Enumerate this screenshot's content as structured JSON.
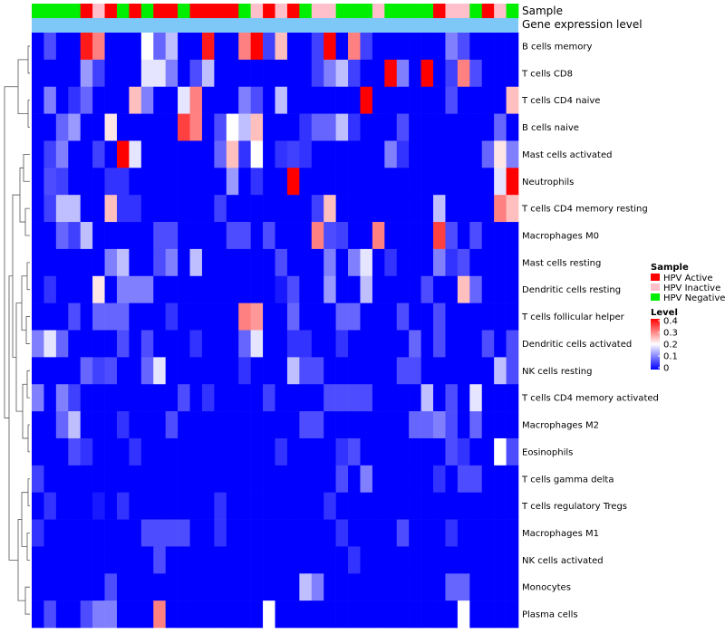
{
  "colors": {
    "low": "#0000ff",
    "mid": "#ffffff",
    "high": "#ff0000",
    "hpv_active": "#ff0000",
    "hpv_inactive": "#ffc0cb",
    "hpv_negative": "#00ee00",
    "expr_bar": "#7ec8f8"
  },
  "chart_data": {
    "type": "heatmap",
    "annotation_labels": [
      "Sample",
      "Gene expression level"
    ],
    "sample_groups": [
      "HPV Active",
      "HPV Inactive",
      "HPV Negative"
    ],
    "sample_annotation": [
      2,
      2,
      2,
      2,
      0,
      1,
      0,
      2,
      0,
      2,
      0,
      0,
      2,
      0,
      0,
      0,
      0,
      2,
      1,
      0,
      1,
      0,
      2,
      1,
      1,
      2,
      2,
      2,
      1,
      2,
      2,
      2,
      2,
      0,
      1,
      1,
      2,
      0,
      1,
      2
    ],
    "legend": {
      "sample_title": "Sample",
      "sample_entries": [
        "HPV Active",
        "HPV Inactive",
        "HPV Negative"
      ],
      "level_title": "Level",
      "level_ticks": [
        "0.4",
        "0.3",
        "0.2",
        "0.1",
        "0"
      ],
      "level_range": [
        0,
        0.4
      ]
    },
    "rows": [
      "B cells memory",
      "T cells CD8",
      "T cells CD4 naive",
      "B cells naive",
      "Mast cells activated",
      "Neutrophils",
      "T cells CD4 memory resting",
      "Macrophages M0",
      "Mast cells resting",
      "Dendritic cells resting",
      "T cells follicular helper",
      "Dendritic cells activated",
      "NK cells resting",
      "T cells CD4 memory activated",
      "Macrophages M2",
      "Eosinophils",
      "T cells gamma delta",
      "T cells regulatory  Tregs",
      "Macrophages M1",
      "NK cells activated",
      "Monocytes",
      "Plasma cells"
    ],
    "values": [
      [
        0.0,
        0.06,
        0.0,
        0.0,
        0.38,
        0.3,
        0.0,
        0.0,
        0.0,
        0.2,
        0.08,
        0.15,
        0.0,
        0.0,
        0.38,
        0.0,
        0.0,
        0.3,
        0.4,
        0.05,
        0.25,
        0.0,
        0.0,
        0.05,
        0.4,
        0.0,
        0.3,
        0.05,
        0.0,
        0.0,
        0.0,
        0.0,
        0.0,
        0.0,
        0.1,
        0.06,
        0.0,
        0.0,
        0.0,
        0.0
      ],
      [
        0.0,
        0.0,
        0.0,
        0.0,
        0.12,
        0.05,
        0.0,
        0.0,
        0.0,
        0.18,
        0.18,
        0.1,
        0.0,
        0.06,
        0.15,
        0.0,
        0.0,
        0.0,
        0.0,
        0.0,
        0.0,
        0.0,
        0.0,
        0.05,
        0.1,
        0.15,
        0.05,
        0.0,
        0.0,
        0.4,
        0.1,
        0.0,
        0.4,
        0.0,
        0.05,
        0.3,
        0.06,
        0.0,
        0.0,
        0.0
      ],
      [
        0.0,
        0.1,
        0.0,
        0.04,
        0.08,
        0.0,
        0.0,
        0.0,
        0.25,
        0.1,
        0.0,
        0.0,
        0.18,
        0.3,
        0.0,
        0.0,
        0.0,
        0.1,
        0.06,
        0.0,
        0.15,
        0.0,
        0.0,
        0.0,
        0.0,
        0.0,
        0.0,
        0.4,
        0.0,
        0.0,
        0.0,
        0.0,
        0.0,
        0.0,
        0.06,
        0.0,
        0.0,
        0.0,
        0.0,
        0.25
      ],
      [
        0.0,
        0.0,
        0.08,
        0.12,
        0.0,
        0.0,
        0.22,
        0.0,
        0.0,
        0.0,
        0.0,
        0.0,
        0.35,
        0.3,
        0.0,
        0.06,
        0.2,
        0.15,
        0.25,
        0.0,
        0.0,
        0.0,
        0.04,
        0.08,
        0.08,
        0.15,
        0.04,
        0.0,
        0.0,
        0.0,
        0.06,
        0.0,
        0.0,
        0.0,
        0.0,
        0.0,
        0.0,
        0.0,
        0.08,
        0.0
      ],
      [
        0.0,
        0.05,
        0.1,
        0.0,
        0.0,
        0.05,
        0.0,
        0.4,
        0.18,
        0.0,
        0.0,
        0.0,
        0.0,
        0.0,
        0.0,
        0.08,
        0.25,
        0.04,
        0.2,
        0.0,
        0.04,
        0.05,
        0.04,
        0.0,
        0.0,
        0.0,
        0.0,
        0.0,
        0.0,
        0.1,
        0.04,
        0.0,
        0.0,
        0.0,
        0.0,
        0.0,
        0.0,
        0.08,
        0.22,
        0.1
      ],
      [
        0.0,
        0.06,
        0.05,
        0.0,
        0.0,
        0.0,
        0.04,
        0.04,
        0.0,
        0.0,
        0.0,
        0.0,
        0.0,
        0.0,
        0.0,
        0.0,
        0.12,
        0.0,
        0.04,
        0.0,
        0.0,
        0.4,
        0.0,
        0.0,
        0.0,
        0.0,
        0.0,
        0.0,
        0.0,
        0.0,
        0.0,
        0.0,
        0.0,
        0.0,
        0.0,
        0.0,
        0.0,
        0.0,
        0.18,
        0.42
      ],
      [
        0.0,
        0.05,
        0.15,
        0.15,
        0.0,
        0.0,
        0.25,
        0.04,
        0.04,
        0.0,
        0.0,
        0.0,
        0.0,
        0.0,
        0.0,
        0.05,
        0.0,
        0.0,
        0.0,
        0.0,
        0.0,
        0.0,
        0.0,
        0.05,
        0.25,
        0.0,
        0.0,
        0.0,
        0.0,
        0.0,
        0.0,
        0.0,
        0.0,
        0.15,
        0.0,
        0.0,
        0.0,
        0.0,
        0.3,
        0.25
      ],
      [
        0.0,
        0.0,
        0.08,
        0.05,
        0.15,
        0.0,
        0.0,
        0.0,
        0.0,
        0.0,
        0.06,
        0.06,
        0.0,
        0.0,
        0.0,
        0.0,
        0.06,
        0.06,
        0.0,
        0.06,
        0.0,
        0.0,
        0.0,
        0.3,
        0.06,
        0.05,
        0.0,
        0.0,
        0.3,
        0.0,
        0.0,
        0.0,
        0.0,
        0.35,
        0.06,
        0.0,
        0.06,
        0.0,
        0.0,
        0.0
      ],
      [
        0.0,
        0.0,
        0.0,
        0.0,
        0.0,
        0.0,
        0.1,
        0.15,
        0.0,
        0.0,
        0.06,
        0.1,
        0.0,
        0.15,
        0.0,
        0.0,
        0.0,
        0.0,
        0.0,
        0.0,
        0.06,
        0.0,
        0.0,
        0.0,
        0.1,
        0.0,
        0.1,
        0.18,
        0.0,
        0.04,
        0.0,
        0.0,
        0.0,
        0.1,
        0.04,
        0.06,
        0.0,
        0.0,
        0.0,
        0.0
      ],
      [
        0.0,
        0.04,
        0.0,
        0.0,
        0.0,
        0.22,
        0.0,
        0.1,
        0.1,
        0.1,
        0.0,
        0.0,
        0.0,
        0.0,
        0.0,
        0.0,
        0.0,
        0.0,
        0.0,
        0.0,
        0.02,
        0.06,
        0.0,
        0.0,
        0.12,
        0.0,
        0.0,
        0.15,
        0.0,
        0.0,
        0.0,
        0.0,
        0.06,
        0.0,
        0.0,
        0.25,
        0.08,
        0.0,
        0.0,
        0.0
      ],
      [
        0.0,
        0.0,
        0.0,
        0.06,
        0.0,
        0.08,
        0.08,
        0.08,
        0.0,
        0.0,
        0.0,
        0.04,
        0.0,
        0.0,
        0.0,
        0.0,
        0.0,
        0.3,
        0.28,
        0.0,
        0.0,
        0.08,
        0.0,
        0.0,
        0.0,
        0.08,
        0.08,
        0.0,
        0.0,
        0.0,
        0.06,
        0.0,
        0.0,
        0.06,
        0.0,
        0.0,
        0.0,
        0.0,
        0.0,
        0.0
      ],
      [
        0.1,
        0.18,
        0.08,
        0.0,
        0.0,
        0.0,
        0.0,
        0.06,
        0.0,
        0.06,
        0.0,
        0.0,
        0.0,
        0.04,
        0.0,
        0.0,
        0.0,
        0.08,
        0.18,
        0.0,
        0.0,
        0.04,
        0.04,
        0.0,
        0.0,
        0.04,
        0.0,
        0.0,
        0.0,
        0.0,
        0.0,
        0.08,
        0.0,
        0.06,
        0.0,
        0.0,
        0.0,
        0.06,
        0.0,
        0.06
      ],
      [
        0.0,
        0.0,
        0.0,
        0.0,
        0.08,
        0.05,
        0.06,
        0.0,
        0.0,
        0.08,
        0.18,
        0.0,
        0.0,
        0.0,
        0.0,
        0.0,
        0.0,
        0.04,
        0.0,
        0.0,
        0.0,
        0.15,
        0.06,
        0.06,
        0.0,
        0.0,
        0.0,
        0.0,
        0.0,
        0.0,
        0.06,
        0.06,
        0.0,
        0.0,
        0.0,
        0.0,
        0.0,
        0.0,
        0.15,
        0.06
      ],
      [
        0.1,
        0.0,
        0.1,
        0.05,
        0.0,
        0.0,
        0.0,
        0.0,
        0.0,
        0.0,
        0.0,
        0.0,
        0.06,
        0.0,
        0.04,
        0.0,
        0.0,
        0.0,
        0.0,
        0.05,
        0.0,
        0.0,
        0.0,
        0.0,
        0.06,
        0.06,
        0.06,
        0.06,
        0.0,
        0.0,
        0.0,
        0.0,
        0.15,
        0.0,
        0.06,
        0.0,
        0.18,
        0.0,
        0.0,
        0.0
      ],
      [
        0.0,
        0.0,
        0.08,
        0.15,
        0.0,
        0.0,
        0.0,
        0.04,
        0.0,
        0.0,
        0.0,
        0.06,
        0.0,
        0.0,
        0.0,
        0.0,
        0.0,
        0.0,
        0.0,
        0.0,
        0.0,
        0.0,
        0.06,
        0.06,
        0.0,
        0.0,
        0.0,
        0.0,
        0.0,
        0.0,
        0.0,
        0.08,
        0.08,
        0.1,
        0.06,
        0.0,
        0.08,
        0.0,
        0.0,
        0.0
      ],
      [
        0.0,
        0.0,
        0.0,
        0.06,
        0.04,
        0.0,
        0.0,
        0.0,
        0.04,
        0.0,
        0.0,
        0.0,
        0.0,
        0.0,
        0.0,
        0.0,
        0.0,
        0.0,
        0.0,
        0.0,
        0.04,
        0.0,
        0.0,
        0.0,
        0.0,
        0.04,
        0.06,
        0.0,
        0.0,
        0.0,
        0.0,
        0.0,
        0.0,
        0.0,
        0.06,
        0.04,
        0.0,
        0.0,
        0.2,
        0.06
      ],
      [
        0.05,
        0.0,
        0.0,
        0.0,
        0.0,
        0.0,
        0.0,
        0.0,
        0.0,
        0.0,
        0.0,
        0.0,
        0.0,
        0.0,
        0.0,
        0.0,
        0.0,
        0.0,
        0.0,
        0.0,
        0.0,
        0.0,
        0.0,
        0.0,
        0.0,
        0.06,
        0.0,
        0.1,
        0.0,
        0.0,
        0.0,
        0.0,
        0.0,
        0.04,
        0.0,
        0.06,
        0.06,
        0.0,
        0.0,
        0.0
      ],
      [
        0.0,
        0.04,
        0.0,
        0.0,
        0.0,
        0.02,
        0.0,
        0.04,
        0.0,
        0.0,
        0.0,
        0.0,
        0.0,
        0.0,
        0.0,
        0.04,
        0.0,
        0.0,
        0.0,
        0.0,
        0.0,
        0.0,
        0.0,
        0.0,
        0.04,
        0.0,
        0.0,
        0.0,
        0.0,
        0.0,
        0.0,
        0.0,
        0.0,
        0.0,
        0.0,
        0.0,
        0.0,
        0.0,
        0.0,
        0.0
      ],
      [
        0.04,
        0.0,
        0.0,
        0.0,
        0.0,
        0.0,
        0.0,
        0.0,
        0.0,
        0.06,
        0.06,
        0.06,
        0.06,
        0.0,
        0.0,
        0.04,
        0.0,
        0.0,
        0.0,
        0.0,
        0.0,
        0.0,
        0.0,
        0.0,
        0.0,
        0.04,
        0.0,
        0.0,
        0.0,
        0.0,
        0.06,
        0.0,
        0.0,
        0.0,
        0.04,
        0.0,
        0.0,
        0.0,
        0.0,
        0.0
      ],
      [
        0.0,
        0.0,
        0.0,
        0.0,
        0.0,
        0.0,
        0.0,
        0.0,
        0.0,
        0.0,
        0.06,
        0.0,
        0.0,
        0.0,
        0.0,
        0.0,
        0.0,
        0.0,
        0.0,
        0.0,
        0.0,
        0.0,
        0.0,
        0.0,
        0.0,
        0.0,
        0.04,
        0.0,
        0.0,
        0.0,
        0.0,
        0.0,
        0.0,
        0.0,
        0.0,
        0.0,
        0.0,
        0.0,
        0.0,
        0.0
      ],
      [
        0.0,
        0.0,
        0.0,
        0.0,
        0.0,
        0.0,
        0.06,
        0.0,
        0.0,
        0.0,
        0.0,
        0.0,
        0.0,
        0.0,
        0.0,
        0.0,
        0.0,
        0.0,
        0.0,
        0.0,
        0.0,
        0.0,
        0.15,
        0.1,
        0.0,
        0.0,
        0.0,
        0.0,
        0.0,
        0.0,
        0.0,
        0.0,
        0.0,
        0.0,
        0.08,
        0.08,
        0.0,
        0.0,
        0.0,
        0.0
      ],
      [
        0.0,
        0.06,
        0.0,
        0.0,
        0.06,
        0.1,
        0.1,
        0.0,
        0.0,
        0.0,
        0.3,
        0.0,
        0.0,
        0.0,
        0.0,
        0.0,
        0.0,
        0.0,
        0.0,
        0.2,
        0.0,
        0.0,
        0.0,
        0.0,
        0.0,
        0.0,
        0.0,
        0.0,
        0.0,
        0.0,
        0.0,
        0.0,
        0.0,
        0.0,
        0.0,
        0.2,
        0.0,
        0.0,
        0.0,
        0.0
      ]
    ]
  }
}
